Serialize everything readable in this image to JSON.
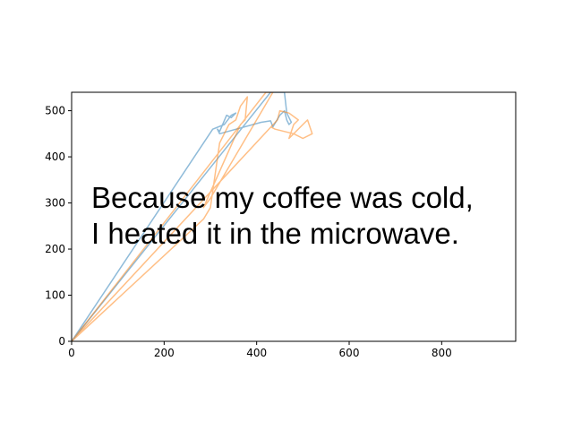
{
  "chart_data": {
    "type": "line",
    "title": "",
    "xlabel": "",
    "ylabel": "",
    "xlim": [
      0,
      960
    ],
    "ylim": [
      0,
      540
    ],
    "grid": false,
    "xticks": [
      0,
      200,
      400,
      600,
      800
    ],
    "yticks": [
      0,
      100,
      200,
      300,
      400,
      500
    ],
    "annotation_lines": [
      "Because my coffee was cold,",
      "I heated it in the microwave."
    ],
    "series": [
      {
        "color": "#1f77b4",
        "opacity": 0.5,
        "points": [
          [
            0,
            0
          ],
          [
            305,
            460
          ],
          [
            330,
            470
          ],
          [
            345,
            490
          ],
          [
            355,
            495
          ],
          [
            345,
            485
          ],
          [
            335,
            490
          ],
          [
            320,
            455
          ],
          [
            315,
            460
          ],
          [
            320,
            450
          ],
          [
            410,
            475
          ],
          [
            430,
            478
          ],
          [
            435,
            465
          ],
          [
            450,
            490
          ],
          [
            460,
            500
          ],
          [
            465,
            480
          ],
          [
            470,
            470
          ],
          [
            475,
            475
          ],
          [
            465,
            495
          ],
          [
            460,
            540
          ],
          [
            430,
            540
          ],
          [
            0,
            0
          ]
        ]
      },
      {
        "color": "#ff7f0e",
        "opacity": 0.5,
        "points": [
          [
            0,
            0
          ],
          [
            285,
            265
          ],
          [
            300,
            290
          ],
          [
            320,
            430
          ],
          [
            340,
            470
          ],
          [
            355,
            480
          ],
          [
            365,
            510
          ],
          [
            380,
            530
          ],
          [
            375,
            480
          ],
          [
            365,
            470
          ],
          [
            285,
            290
          ],
          [
            300,
            310
          ],
          [
            435,
            540
          ],
          [
            420,
            540
          ],
          [
            0,
            0
          ],
          [
            445,
            480
          ],
          [
            450,
            500
          ],
          [
            470,
            495
          ],
          [
            490,
            480
          ],
          [
            480,
            470
          ],
          [
            470,
            440
          ],
          [
            500,
            470
          ],
          [
            510,
            480
          ],
          [
            520,
            450
          ],
          [
            500,
            440
          ],
          [
            480,
            450
          ],
          [
            440,
            460
          ],
          [
            430,
            465
          ]
        ]
      }
    ]
  }
}
